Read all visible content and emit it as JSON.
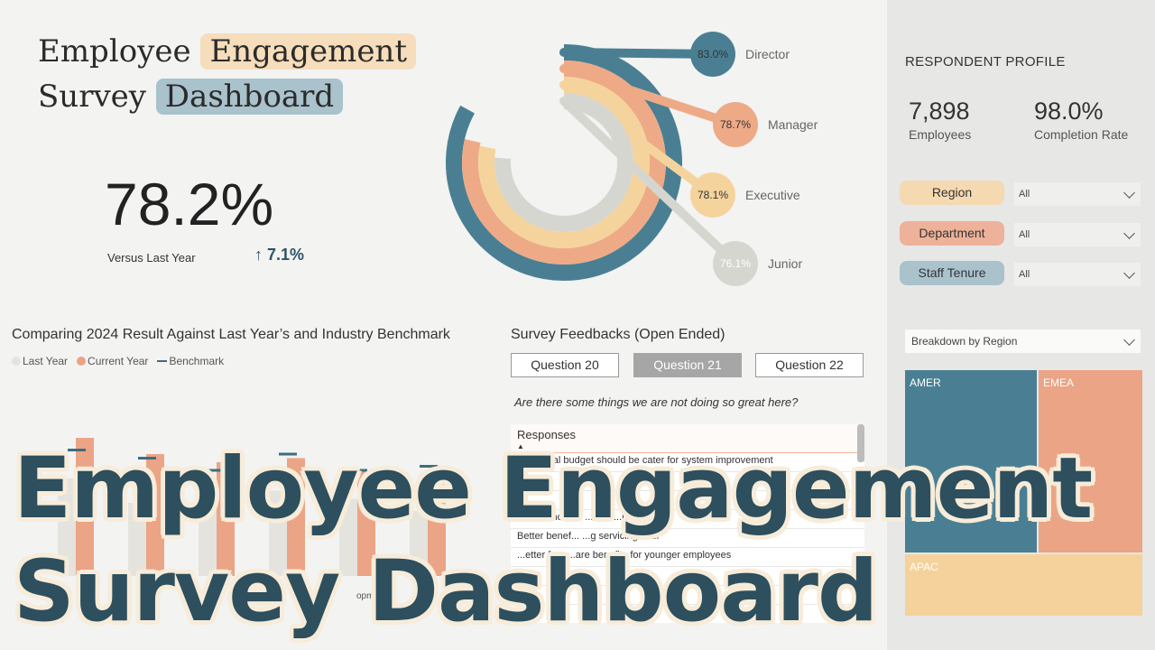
{
  "title": {
    "w1": "Employee",
    "w2": "Engagement",
    "w3": "Survey",
    "w4": "Dashboard"
  },
  "kpi": {
    "value": "78.2%",
    "label": "Versus Last Year",
    "delta": "↑ 7.1%"
  },
  "radial": {
    "colors": [
      "#4a7f93",
      "#eeaa86",
      "#f5d39d",
      "#d6d6d0"
    ],
    "items": [
      {
        "label": "Director",
        "value": "83.0%",
        "score": 83.0
      },
      {
        "label": "Manager",
        "value": "78.7%",
        "score": 78.7
      },
      {
        "label": "Executive",
        "value": "78.1%",
        "score": 78.1
      },
      {
        "label": "Junior",
        "value": "76.1%",
        "score": 76.1
      }
    ]
  },
  "profile": {
    "title": "RESPONDENT PROFILE",
    "employees_value": "7,898",
    "employees_label": "Employees",
    "completion_value": "98.0%",
    "completion_label": "Completion Rate",
    "filters": [
      {
        "label": "Region",
        "value": "All",
        "color": "#f5d9b0"
      },
      {
        "label": "Department",
        "value": "All",
        "color": "#eeb199"
      },
      {
        "label": "Staff Tenure",
        "value": "All",
        "color": "#a9c2cc"
      }
    ],
    "breakdown": "Breakdown by Region",
    "treemap": [
      {
        "label": "AMER",
        "color": "#4a7f93"
      },
      {
        "label": "EMEA",
        "color": "#eba486"
      },
      {
        "label": "APAC",
        "color": "#f5d29b"
      }
    ]
  },
  "chart": {
    "title": "Comparing 2024 Result Against Last Year’s and Industry Benchmark",
    "legend": {
      "last": "Last Year",
      "current": "Current Year",
      "benchmark": "Benchmark"
    },
    "partial_labels": [
      "e",
      "opm",
      "ent"
    ]
  },
  "chart_data": {
    "type": "bar",
    "series": [
      {
        "name": "Last Year",
        "color": "#e5e3dd",
        "values": [
          0.84,
          0.78,
          0.82,
          0.81,
          0.79,
          0.76
        ]
      },
      {
        "name": "Current Year",
        "color": "#eba486",
        "values": [
          0.94,
          0.9,
          0.88,
          0.89,
          0.86,
          0.84
        ]
      },
      {
        "name": "Benchmark",
        "color": "#3c6e82",
        "values": [
          0.91,
          0.89,
          0.86,
          0.9,
          0.86,
          0.87
        ]
      }
    ]
  },
  "feedback": {
    "title": "Survey Feedbacks (Open Ended)",
    "questions": [
      "Question 20",
      "Question 21",
      "Question 22"
    ],
    "question_text": "Are there some things we are not doing so great here?",
    "header": "Responses",
    "rows": [
      "Additional budget should be cater for system improvement",
      "...",
      "...",
      "Better and m... ...itive ...pensat...",
      "Better benef... ...g servicing staff",
      "...etter fa... ...are benefits for younger employees",
      "...",
      "..."
    ]
  },
  "overlay": {
    "line1": "Employee Engagement",
    "line2": "Survey Dashboard"
  }
}
